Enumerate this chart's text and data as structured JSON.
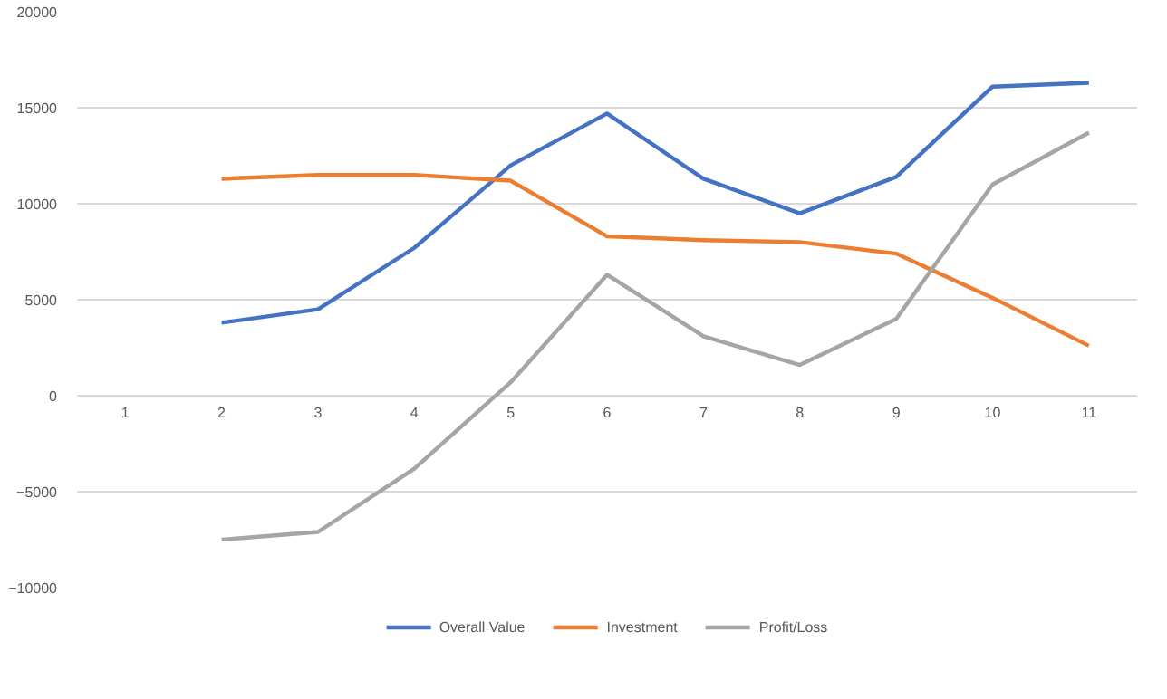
{
  "chart_data": {
    "type": "line",
    "categories": [
      "1",
      "2",
      "3",
      "4",
      "5",
      "6",
      "7",
      "8",
      "9",
      "10",
      "11"
    ],
    "series": [
      {
        "name": "Overall Value",
        "color": "#4472c4",
        "values": [
          null,
          3800,
          4500,
          7700,
          12000,
          14700,
          11300,
          9500,
          11400,
          16100,
          16300
        ]
      },
      {
        "name": "Investment",
        "color": "#ed7d31",
        "values": [
          null,
          11300,
          11500,
          11500,
          11200,
          8300,
          8100,
          8000,
          7400,
          5100,
          2600
        ]
      },
      {
        "name": "Profit/Loss",
        "color": "#a5a5a5",
        "values": [
          null,
          -7500,
          -7100,
          -3800,
          700,
          6300,
          3100,
          1600,
          4000,
          11000,
          13700
        ]
      }
    ],
    "ylim": [
      -10000,
      20000
    ],
    "yticks": [
      -10000,
      -5000,
      0,
      5000,
      10000,
      15000,
      20000
    ],
    "grid": "y",
    "legend": "bottom",
    "marker": "none",
    "line_style": "solid"
  }
}
